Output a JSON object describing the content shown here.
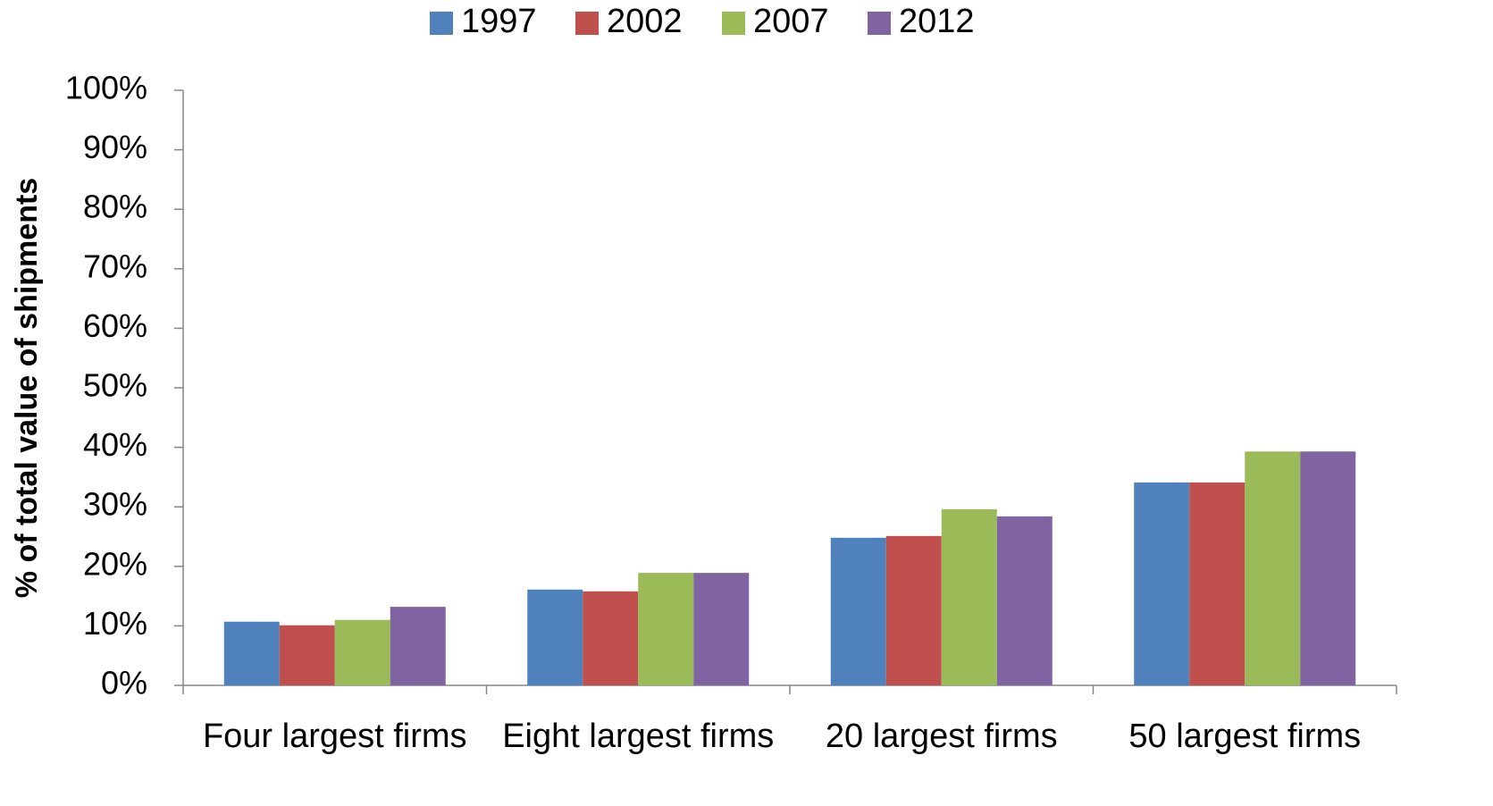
{
  "chart_data": {
    "type": "bar",
    "y_label": "% of total value of shipments",
    "categories": [
      "Four largest firms",
      "Eight largest firms",
      "20 largest firms",
      "50 largest firms"
    ],
    "series": [
      {
        "name": "1997",
        "color": "#4f81bd",
        "values": [
          10.7,
          16.1,
          24.8,
          34.1
        ]
      },
      {
        "name": "2002",
        "color": "#c0504d",
        "values": [
          10.1,
          15.8,
          25.1,
          34.1
        ]
      },
      {
        "name": "2007",
        "color": "#9bbb59",
        "values": [
          11.0,
          18.9,
          29.6,
          39.3
        ]
      },
      {
        "name": "2012",
        "color": "#8064a2",
        "values": [
          13.2,
          18.9,
          28.4,
          39.3
        ]
      }
    ],
    "ylim": [
      0,
      100
    ],
    "yticks": [
      {
        "value": 0,
        "label": "0%"
      },
      {
        "value": 10,
        "label": "10%"
      },
      {
        "value": 20,
        "label": "20%"
      },
      {
        "value": 30,
        "label": "30%"
      },
      {
        "value": 40,
        "label": "40%"
      },
      {
        "value": 50,
        "label": "50%"
      },
      {
        "value": 60,
        "label": "60%"
      },
      {
        "value": 70,
        "label": "70%"
      },
      {
        "value": 80,
        "label": "80%"
      },
      {
        "value": 90,
        "label": "90%"
      },
      {
        "value": 100,
        "label": "100%"
      }
    ],
    "grid": false,
    "legend": "top"
  }
}
